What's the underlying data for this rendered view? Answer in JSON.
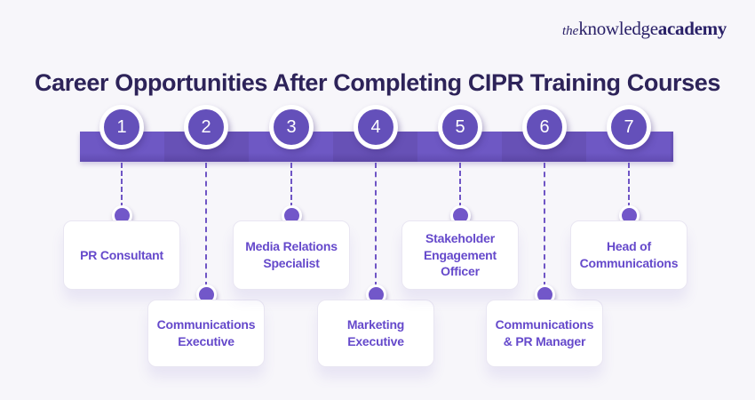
{
  "logo": {
    "the": "the",
    "knowledge": "knowledge",
    "academy": "academy"
  },
  "title": "Career Opportunities After Completing CIPR Training Courses",
  "colors": {
    "background": "#f7f6fa",
    "bar_purple": "#6751b6",
    "bar_purple_light": "#6e58c4",
    "circle_purple": "#6450ba",
    "dot_purple": "#7257c9",
    "card_text": "#6549cb",
    "title_text": "#2d2359",
    "logo_text": "#2a2168"
  },
  "timeline": {
    "items": [
      {
        "number": "1",
        "label": "PR Consultant",
        "row": "top"
      },
      {
        "number": "2",
        "label": "Communications Executive",
        "row": "bottom"
      },
      {
        "number": "3",
        "label": "Media Relations Specialist",
        "row": "top"
      },
      {
        "number": "4",
        "label": "Marketing Executive",
        "row": "bottom"
      },
      {
        "number": "5",
        "label": "Stakeholder Engagement Officer",
        "row": "top"
      },
      {
        "number": "6",
        "label": "Communications & PR Manager",
        "row": "bottom"
      },
      {
        "number": "7",
        "label": "Head of Communications",
        "row": "top"
      }
    ]
  }
}
